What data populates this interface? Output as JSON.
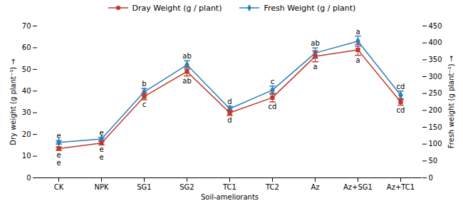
{
  "chart_data": {
    "type": "line",
    "categories": [
      "CK",
      "NPK",
      "SG1",
      "SG2",
      "TC1",
      "TC2",
      "Az",
      "Az+SG1",
      "Az+TC1"
    ],
    "series": [
      {
        "name": "Dray Weight (g / plant)",
        "color": "#c0392b",
        "marker": "square",
        "axis": "y",
        "values": [
          13.5,
          16.0,
          37.5,
          49.0,
          30.0,
          37.0,
          56.0,
          59.0,
          35.0
        ],
        "errors": [
          0.8,
          0.8,
          1.5,
          2.0,
          1.2,
          2.0,
          2.5,
          2.5,
          1.5
        ],
        "point_labels": [
          [
            "e",
            "e"
          ],
          [
            "e",
            "e"
          ],
          [
            "c"
          ],
          [
            "ab"
          ],
          [
            "d"
          ],
          [
            "cd"
          ],
          [
            "a"
          ],
          [
            "a"
          ],
          [
            "cd"
          ]
        ]
      },
      {
        "name": "Fresh Weight (g / plant)",
        "color": "#2980b9",
        "marker": "diamond",
        "axis": "y2",
        "values": [
          105,
          115,
          255,
          335,
          205,
          260,
          370,
          405,
          245
        ],
        "errors": [
          5,
          5,
          10,
          12,
          7,
          12,
          15,
          15,
          12
        ],
        "point_labels": [
          [
            "e"
          ],
          [
            "e"
          ],
          [
            "b"
          ],
          [
            "ab"
          ],
          [
            "d"
          ],
          [
            "c"
          ],
          [
            "ab"
          ],
          [
            "a"
          ],
          [
            "cd"
          ]
        ]
      }
    ],
    "xlabel": "Soil-ameliorants",
    "ylabel": "Dry weight (g plant⁻¹)",
    "y2label": "Fresh weight (g plant⁻¹)",
    "ylim": [
      0,
      70
    ],
    "yticks": [
      0,
      10,
      20,
      30,
      40,
      50,
      60,
      70
    ],
    "y2lim": [
      0,
      450
    ],
    "y2ticks": [
      0,
      50,
      100,
      150,
      200,
      250,
      300,
      350,
      400,
      450
    ],
    "grid": false,
    "legend": "top"
  }
}
